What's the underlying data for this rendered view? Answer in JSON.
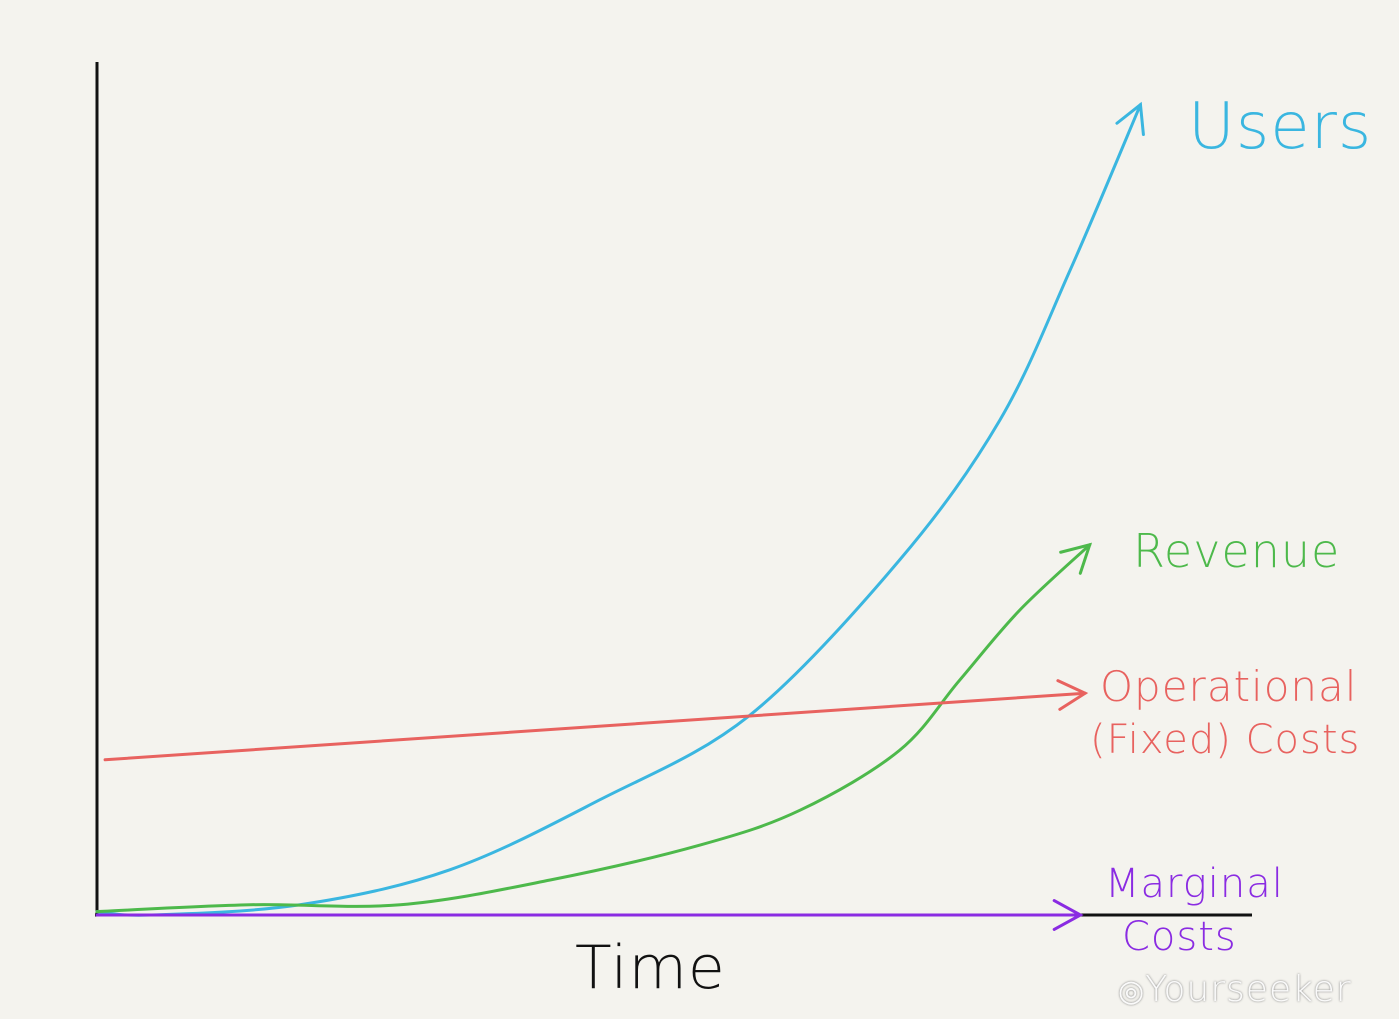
{
  "chart_data": {
    "type": "line",
    "title": "",
    "xlabel": "Time",
    "ylabel": "",
    "xlim": [
      0,
      100
    ],
    "ylim": [
      0,
      100
    ],
    "grid": false,
    "legend": "labels at line ends (right)",
    "series": [
      {
        "name": "Users",
        "color": "#3ab6e0",
        "x": [
          0,
          4.6,
          17.6,
          30.6,
          43.6,
          56.6,
          69.6,
          78.3,
          84.4,
          90.5
        ],
        "y": [
          0.4,
          0,
          1.2,
          5.3,
          13.5,
          23.4,
          41.6,
          58,
          75.6,
          95
        ]
      },
      {
        "name": "Revenue",
        "color": "#4db94b",
        "x": [
          0,
          13.3,
          26.3,
          39.3,
          52.3,
          61,
          69.6,
          74.8,
          80,
          86.1
        ],
        "y": [
          0.4,
          1.2,
          1.2,
          4.1,
          8.2,
          12.3,
          19.3,
          27.5,
          35.7,
          43.4
        ]
      },
      {
        "name": "Operational (Fixed) Costs",
        "color": "#e8625f",
        "x": [
          0.7,
          85.7
        ],
        "y": [
          18.2,
          26
        ]
      },
      {
        "name": "Marginal Costs",
        "color": "#8a2be2",
        "x": [
          0,
          85.3
        ],
        "y": [
          0,
          0
        ]
      }
    ],
    "labels": {
      "users": "Users",
      "revenue": "Revenue",
      "operational_line1": "Operational",
      "operational_line2": "(Fixed) Costs",
      "marginal_line1": "Marginal",
      "marginal_line2": "Costs"
    }
  },
  "watermark": "Yourseeker"
}
